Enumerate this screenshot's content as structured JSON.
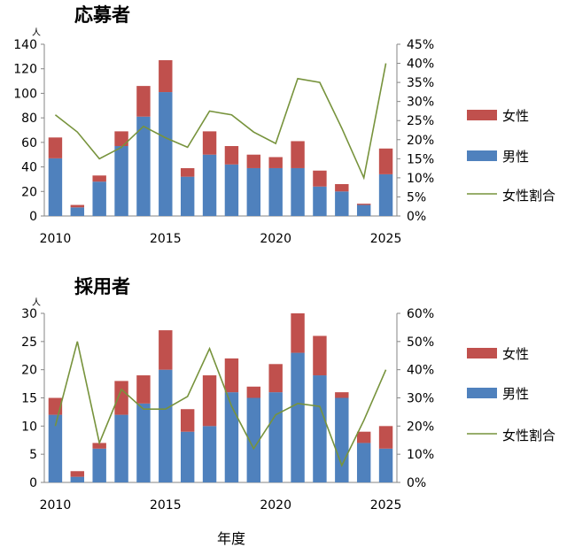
{
  "chart_data": [
    {
      "type": "bar",
      "stacked": true,
      "title": "応募者",
      "y_unit": "人",
      "categories": [
        "2010",
        "2011",
        "2012",
        "2013",
        "2014",
        "2015",
        "2016",
        "2017",
        "2018",
        "2019",
        "2020",
        "2021",
        "2022",
        "2023",
        "2024",
        "2025"
      ],
      "x_tick_labels": [
        "2010",
        "2015",
        "2020",
        "2025"
      ],
      "ylim": [
        0,
        140
      ],
      "y_ticks": [
        0,
        20,
        40,
        60,
        80,
        100,
        120,
        140
      ],
      "y2lim": [
        0,
        45
      ],
      "y2_ticks": [
        "0%",
        "5%",
        "10%",
        "15%",
        "20%",
        "25%",
        "30%",
        "35%",
        "40%",
        "45%"
      ],
      "series": [
        {
          "name": "男性",
          "color": "#4f81bd",
          "values": [
            47,
            7,
            28,
            57,
            81,
            101,
            32,
            50,
            42,
            39,
            39,
            39,
            24,
            20,
            9,
            34
          ]
        },
        {
          "name": "女性",
          "color": "#c0504d",
          "values": [
            17,
            2,
            5,
            12,
            25,
            26,
            7,
            19,
            15,
            11,
            9,
            22,
            13,
            6,
            1,
            21
          ]
        }
      ],
      "line": {
        "name": "女性割合",
        "color": "#77933c",
        "axis": "right",
        "values": [
          26.5,
          22,
          15,
          18,
          23.5,
          20.5,
          18,
          27.5,
          26.5,
          22,
          19,
          36,
          35,
          23,
          10,
          40
        ]
      },
      "legend": [
        "女性",
        "男性",
        "女性割合"
      ]
    },
    {
      "type": "bar",
      "stacked": true,
      "title": "採用者",
      "y_unit": "人",
      "categories": [
        "2010",
        "2011",
        "2012",
        "2013",
        "2014",
        "2015",
        "2016",
        "2017",
        "2018",
        "2019",
        "2020",
        "2021",
        "2022",
        "2023",
        "2024",
        "2025"
      ],
      "x_tick_labels": [
        "2010",
        "2015",
        "2020",
        "2025"
      ],
      "xlabel": "年度",
      "ylim": [
        0,
        30
      ],
      "y_ticks": [
        0,
        5,
        10,
        15,
        20,
        25,
        30
      ],
      "y2lim": [
        0,
        60
      ],
      "y2_ticks": [
        "0%",
        "10%",
        "20%",
        "30%",
        "40%",
        "50%",
        "60%"
      ],
      "series": [
        {
          "name": "男性",
          "color": "#4f81bd",
          "values": [
            12,
            1,
            6,
            12,
            14,
            20,
            9,
            10,
            16,
            15,
            16,
            23,
            19,
            15,
            7,
            6
          ]
        },
        {
          "name": "女性",
          "color": "#c0504d",
          "values": [
            3,
            1,
            1,
            6,
            5,
            7,
            4,
            9,
            6,
            2,
            5,
            7,
            7,
            1,
            2,
            4
          ]
        }
      ],
      "line": {
        "name": "女性割合",
        "color": "#77933c",
        "axis": "right",
        "values": [
          20,
          50,
          14,
          33,
          26,
          26,
          30.5,
          47.5,
          27,
          12,
          24,
          28,
          27,
          6,
          22,
          40
        ]
      },
      "legend": [
        "女性",
        "男性",
        "女性割合"
      ]
    }
  ]
}
